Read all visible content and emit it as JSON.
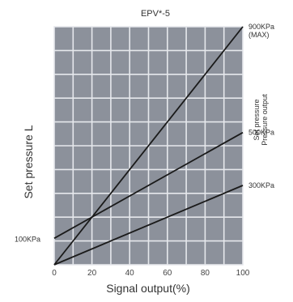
{
  "chart_data": {
    "type": "line",
    "title": "EPV*-5",
    "xlabel": "Signal output(%)",
    "ylabel": "Set pressure L",
    "right_label_lines": [
      "Set pressure",
      "Pressure output"
    ],
    "xlim": [
      0,
      100
    ],
    "ylim": [
      0,
      900
    ],
    "x_ticks": [
      0,
      20,
      40,
      60,
      80,
      100
    ],
    "grid": true,
    "series": [
      {
        "name": "900KPa (MAX)",
        "end_label": [
          "900KPa",
          "(MAX)"
        ],
        "x": [
          0,
          100
        ],
        "y": [
          0,
          900
        ]
      },
      {
        "name": "500KPa",
        "end_label": [
          "500KPa"
        ],
        "x": [
          0,
          100
        ],
        "y": [
          100,
          500
        ]
      },
      {
        "name": "300KPa",
        "end_label": [
          "300KPa"
        ],
        "x": [
          0,
          100
        ],
        "y": [
          0,
          300
        ]
      }
    ],
    "annotations": [
      {
        "text": "100KPa",
        "y": 100
      }
    ],
    "colors": {
      "plot_bg": "#8c919b",
      "grid": "#e6e8ec",
      "line": "#1a1a1a"
    }
  }
}
